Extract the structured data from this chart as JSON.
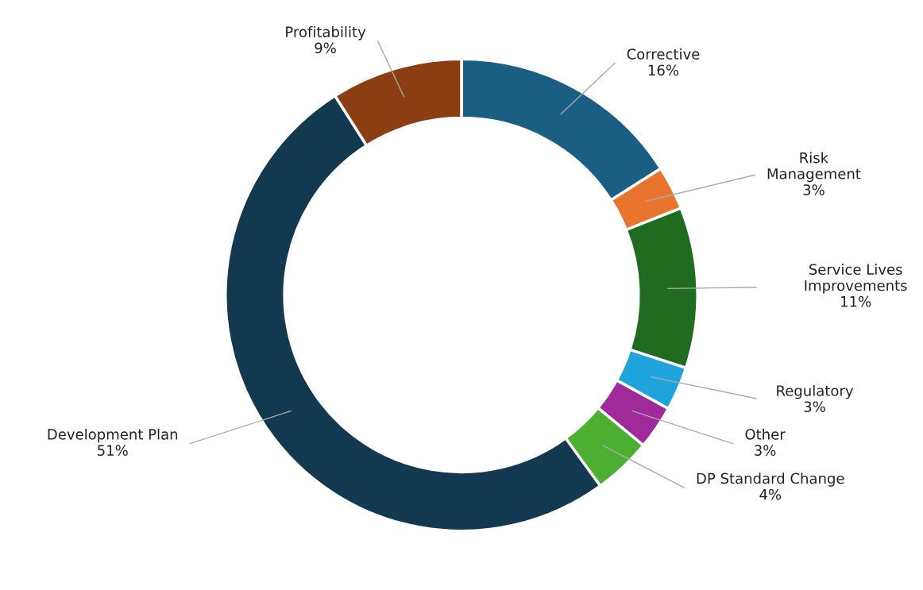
{
  "chart_data": {
    "type": "donut",
    "categories": [
      "Corrective",
      "Risk\nManagement",
      "Service Lives\nImprovements",
      "Regulatory",
      "Other",
      "DP Standard Change",
      "Development Plan",
      "Profitability"
    ],
    "values": [
      16,
      3,
      11,
      3,
      3,
      4,
      51,
      9
    ],
    "colors": [
      "#1b5e84",
      "#e8742e",
      "#1f6b1f",
      "#1fa3dc",
      "#a02a9a",
      "#4caf32",
      "#12394f",
      "#8b3e12"
    ],
    "value_labels": [
      "16%",
      "3%",
      "11%",
      "3%",
      "3%",
      "4%",
      "51%",
      "9%"
    ]
  }
}
